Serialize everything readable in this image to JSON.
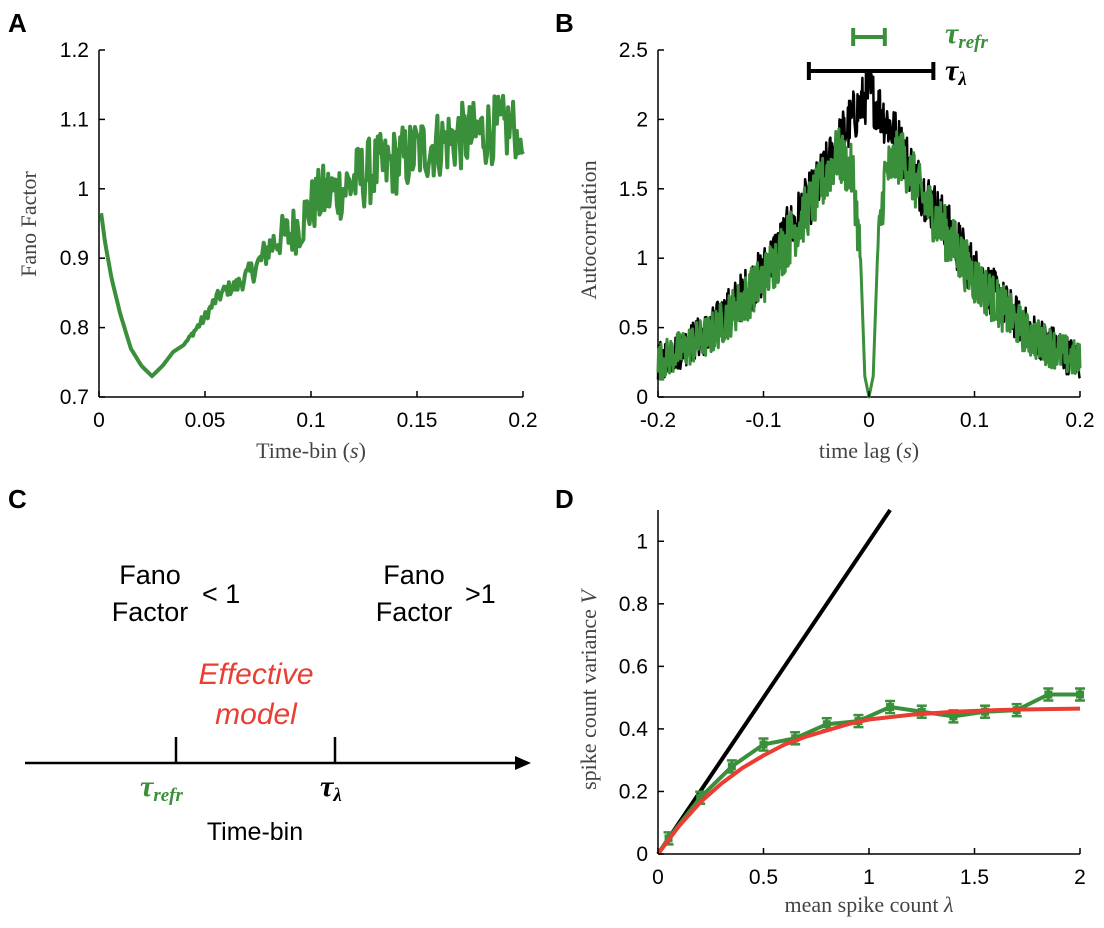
{
  "colors": {
    "green": "#3a8f3a",
    "black": "#000000",
    "red": "#ea3d33"
  },
  "panels": {
    "A": {
      "letter": "A"
    },
    "B": {
      "letter": "B",
      "tau_refr_label": "τ",
      "tau_refr_sub": "refr",
      "tau_lambda_label": "τ",
      "tau_lambda_sub": "λ"
    },
    "C": {
      "letter": "C",
      "left_text_1": "Fano",
      "left_text_2": "Factor",
      "left_rel": "< 1",
      "right_text_1": "Fano",
      "right_text_2": "Factor",
      "right_rel": ">1",
      "effective_1": "Effective",
      "effective_2": "model",
      "tau_refr_label": "τ",
      "tau_refr_sub": "refr",
      "tau_lambda_label": "τ",
      "tau_lambda_sub": "λ",
      "axis_label": "Time-bin"
    },
    "D": {
      "letter": "D"
    }
  },
  "chart_data": [
    {
      "panel": "A",
      "type": "line",
      "xlabel": "Time-bin (s)",
      "ylabel": "Fano Factor",
      "xlim": [
        0,
        0.2
      ],
      "ylim": [
        0.7,
        1.2
      ],
      "xticks": [
        "0",
        "0.05",
        "0.1",
        "0.15",
        "0.2"
      ],
      "yticks": [
        "0.7",
        "0.8",
        "0.9",
        "1",
        "1.1",
        "1.2"
      ],
      "series": [
        {
          "color": "#3a8f3a",
          "x": [
            0.001,
            0.003,
            0.006,
            0.01,
            0.015,
            0.02,
            0.025,
            0.03,
            0.035,
            0.04,
            0.045,
            0.05,
            0.055,
            0.06,
            0.065,
            0.07,
            0.075,
            0.08,
            0.085,
            0.09,
            0.095,
            0.1,
            0.105,
            0.11,
            0.115,
            0.12,
            0.125,
            0.13,
            0.135,
            0.14,
            0.145,
            0.15,
            0.155,
            0.16,
            0.165,
            0.17,
            0.175,
            0.18,
            0.185,
            0.19,
            0.195,
            0.2
          ],
          "y": [
            0.965,
            0.92,
            0.87,
            0.82,
            0.77,
            0.745,
            0.73,
            0.745,
            0.765,
            0.775,
            0.795,
            0.815,
            0.84,
            0.855,
            0.86,
            0.875,
            0.89,
            0.915,
            0.93,
            0.935,
            0.95,
            0.975,
            0.99,
            0.995,
            1.0,
            1.01,
            1.02,
            1.03,
            1.03,
            1.04,
            1.045,
            1.055,
            1.06,
            1.065,
            1.07,
            1.075,
            1.075,
            1.08,
            1.085,
            1.085,
            1.09,
            1.05
          ],
          "noise": [
            0,
            0,
            0,
            0,
            0,
            0,
            0,
            0,
            0,
            0,
            0.005,
            0.008,
            0.01,
            0.01,
            0.012,
            0.015,
            0.02,
            0.025,
            0.03,
            0.035,
            0.04,
            0.04,
            0.045,
            0.045,
            0.045,
            0.05,
            0.05,
            0.05,
            0.05,
            0.05,
            0.05,
            0.05,
            0.05,
            0.05,
            0.05,
            0.05,
            0.05,
            0.05,
            0.05,
            0.05,
            0.05,
            0
          ]
        }
      ]
    },
    {
      "panel": "B",
      "type": "line",
      "xlabel": "time lag (s)",
      "ylabel": "Autocorrelation",
      "xlim": [
        -0.2,
        0.2
      ],
      "ylim": [
        0,
        2.5
      ],
      "xticks": [
        "-0.2",
        "-0.1",
        "0",
        "0.1",
        "0.2"
      ],
      "yticks": [
        "0",
        "0.5",
        "1",
        "1.5",
        "2",
        "2.5"
      ],
      "series": [
        {
          "color": "#000000",
          "x": [
            -0.2,
            -0.15,
            -0.1,
            -0.05,
            -0.02,
            0,
            0.02,
            0.05,
            0.1,
            0.15,
            0.2
          ],
          "y": [
            0.25,
            0.48,
            0.9,
            1.5,
            1.95,
            2.2,
            1.95,
            1.5,
            0.9,
            0.48,
            0.25
          ],
          "noise": 0.2
        },
        {
          "color": "#3a8f3a",
          "x": [
            -0.2,
            -0.15,
            -0.1,
            -0.05,
            -0.03,
            -0.015,
            -0.008,
            -0.004,
            0,
            0.004,
            0.008,
            0.015,
            0.03,
            0.05,
            0.1,
            0.15,
            0.2
          ],
          "y": [
            0.25,
            0.45,
            0.85,
            1.45,
            1.75,
            1.6,
            1.0,
            0.15,
            0.0,
            0.15,
            1.0,
            1.6,
            1.75,
            1.45,
            0.85,
            0.45,
            0.25
          ],
          "noise": 0.2
        }
      ],
      "annotations": [
        {
          "label": "τrefr",
          "color": "#3a8f3a",
          "x_from": -0.015,
          "x_to": 0.015
        },
        {
          "label": "τλ",
          "color": "#000000",
          "x_from": -0.057,
          "x_to": 0.061
        }
      ]
    },
    {
      "panel": "D",
      "type": "line",
      "xlabel": "mean spike count λ",
      "ylabel": "spike count variance V",
      "xlim": [
        0,
        2
      ],
      "ylim": [
        0,
        1.1
      ],
      "xticks": [
        "0",
        "0.5",
        "1",
        "1.5",
        "2"
      ],
      "yticks": [
        "0",
        "0.2",
        "0.4",
        "0.6",
        "0.8",
        "1"
      ],
      "series": [
        {
          "color": "#000000",
          "x": [
            0,
            1.1
          ],
          "y": [
            0,
            1.1
          ]
        },
        {
          "color": "#3a8f3a",
          "x": [
            0,
            0.05,
            0.2,
            0.35,
            0.5,
            0.65,
            0.8,
            0.95,
            1.1,
            1.25,
            1.4,
            1.55,
            1.7,
            1.85,
            2.0
          ],
          "y": [
            0,
            0.05,
            0.18,
            0.28,
            0.35,
            0.37,
            0.415,
            0.425,
            0.47,
            0.455,
            0.44,
            0.455,
            0.46,
            0.51,
            0.51
          ]
        },
        {
          "color": "#ea3d33",
          "x": [
            0,
            0.1,
            0.2,
            0.3,
            0.4,
            0.5,
            0.6,
            0.7,
            0.8,
            0.9,
            1.0,
            1.2,
            1.4,
            1.6,
            1.8,
            2.0
          ],
          "y": [
            0,
            0.09,
            0.165,
            0.225,
            0.275,
            0.315,
            0.35,
            0.375,
            0.395,
            0.415,
            0.43,
            0.445,
            0.455,
            0.46,
            0.463,
            0.465
          ]
        }
      ]
    }
  ]
}
